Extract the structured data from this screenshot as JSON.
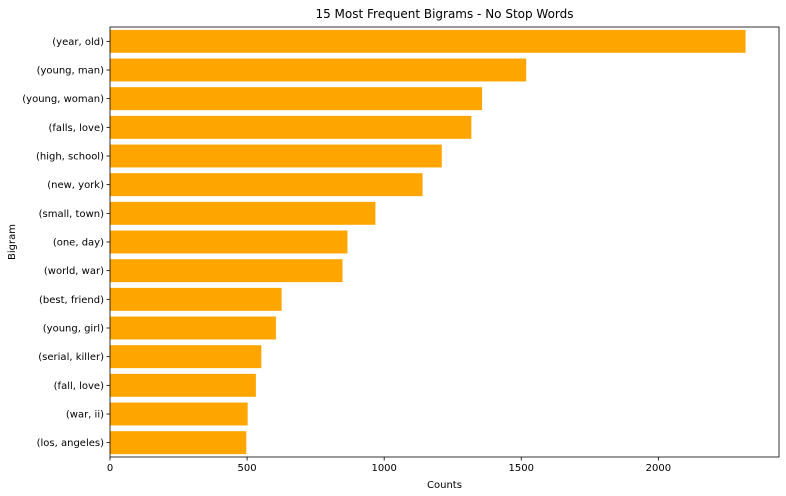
{
  "chart_data": {
    "type": "bar",
    "orientation": "horizontal",
    "title": "15 Most Frequent Bigrams - No Stop Words",
    "xlabel": "Counts",
    "ylabel": "Bigram",
    "xlim": [
      0,
      2440
    ],
    "xticks": [
      0,
      500,
      1000,
      1500,
      2000
    ],
    "grid": false,
    "bar_color": "#ffa500",
    "categories": [
      "(year, old)",
      "(young, man)",
      "(young, woman)",
      "(falls, love)",
      "(high, school)",
      "(new, york)",
      "(small, town)",
      "(one, day)",
      "(world, war)",
      "(best, friend)",
      "(young, girl)",
      "(serial, killer)",
      "(fall, love)",
      "(war, ii)",
      "(los, angeles)"
    ],
    "values": [
      2318,
      1518,
      1357,
      1318,
      1210,
      1140,
      968,
      866,
      848,
      626,
      605,
      552,
      532,
      502,
      497
    ]
  }
}
